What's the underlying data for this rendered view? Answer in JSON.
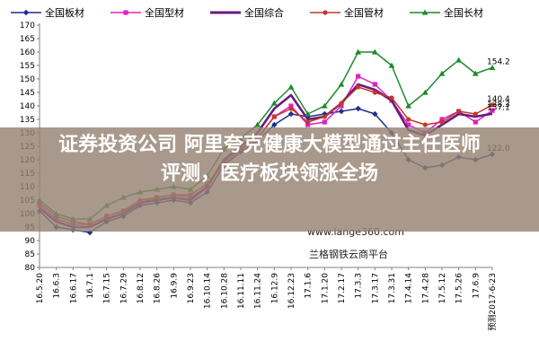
{
  "legend": [
    {
      "label": "全国板材",
      "color": "#1f2f8f",
      "marker": "diamond"
    },
    {
      "label": "全国型材",
      "color": "#e020c0",
      "marker": "square"
    },
    {
      "label": "全国综合",
      "color": "#6a1a7a",
      "marker": "none"
    },
    {
      "label": "全国管材",
      "color": "#c0392b",
      "marker": "circle"
    },
    {
      "label": "全国长材",
      "color": "#1e8a2e",
      "marker": "triangle"
    }
  ],
  "headline": {
    "line1": "证券投资公司 阿里夸克健康大模型通过主任医师",
    "line2": "评测，医疗板块领涨全场"
  },
  "watermark": {
    "url": "www.lange360.com",
    "name": "兰格钢铁云商平台"
  },
  "chart_data": {
    "type": "line",
    "ylim": [
      80,
      170
    ],
    "yticks": [
      80,
      85,
      90,
      95,
      100,
      105,
      110,
      115,
      120,
      125,
      130,
      135,
      140,
      145,
      150,
      155,
      160,
      165,
      170
    ],
    "categories": [
      "16.5.20",
      "16.6.3",
      "16.6.17",
      "16.7.1",
      "16.7.15",
      "16.7.29",
      "16.8.12",
      "16.8.26",
      "16.9.9",
      "16.9.23",
      "16.10.14",
      "16.10.28",
      "16.11.11",
      "16.11.24",
      "16.12.9",
      "16.12.23",
      "17.1.6",
      "17.1.20",
      "17.2.17",
      "17.3.3",
      "17.3.17",
      "17.3.31",
      "17.4.14",
      "17.4.28",
      "17.5.12",
      "17.5.26",
      "17.6.9",
      "预测2017-6-23"
    ],
    "series": [
      {
        "name": "全国板材",
        "values": [
          101,
          95,
          94,
          93,
          97,
          99,
          103,
          104,
          105,
          104,
          108,
          118,
          123,
          127,
          133,
          137,
          136,
          137,
          138,
          139,
          137,
          130,
          120,
          117,
          118,
          121,
          120,
          122
        ]
      },
      {
        "name": "全国型材",
        "values": [
          103,
          98,
          96,
          96,
          99,
          101,
          104,
          106,
          107,
          106,
          110,
          119,
          124,
          128,
          136,
          140,
          133,
          134,
          140,
          151,
          148,
          142,
          133,
          130,
          135,
          138,
          134,
          138.3
        ]
      },
      {
        "name": "全国综合",
        "values": [
          102,
          97,
          95,
          95,
          98,
          100,
          104,
          105,
          106,
          105,
          110,
          120,
          125,
          130,
          139,
          144,
          135,
          136,
          141,
          148,
          146,
          142,
          131,
          129,
          133,
          137,
          136,
          137.1
        ]
      },
      {
        "name": "全国管材",
        "values": [
          104,
          99,
          97,
          96,
          99,
          101,
          105,
          106,
          107,
          107,
          111,
          119,
          124,
          128,
          136,
          139,
          134,
          136,
          141,
          147,
          145,
          143,
          135,
          133,
          134,
          138,
          137,
          140.4
        ]
      },
      {
        "name": "全国长材",
        "values": [
          105,
          100,
          98,
          98,
          103,
          106,
          108,
          109,
          110,
          109,
          114,
          124,
          128,
          133,
          141,
          147,
          137,
          140,
          148,
          160,
          160,
          155,
          140,
          145,
          152,
          157,
          152,
          154.2
        ]
      }
    ],
    "end_labels": [
      {
        "text": "154.2",
        "series": 4
      },
      {
        "text": "140.4",
        "series": 3
      },
      {
        "text": "138.3",
        "series": 1
      },
      {
        "text": "137.1",
        "series": 2
      },
      {
        "text": "122.0",
        "series": 0
      }
    ],
    "grid": false,
    "legend_position": "top"
  }
}
